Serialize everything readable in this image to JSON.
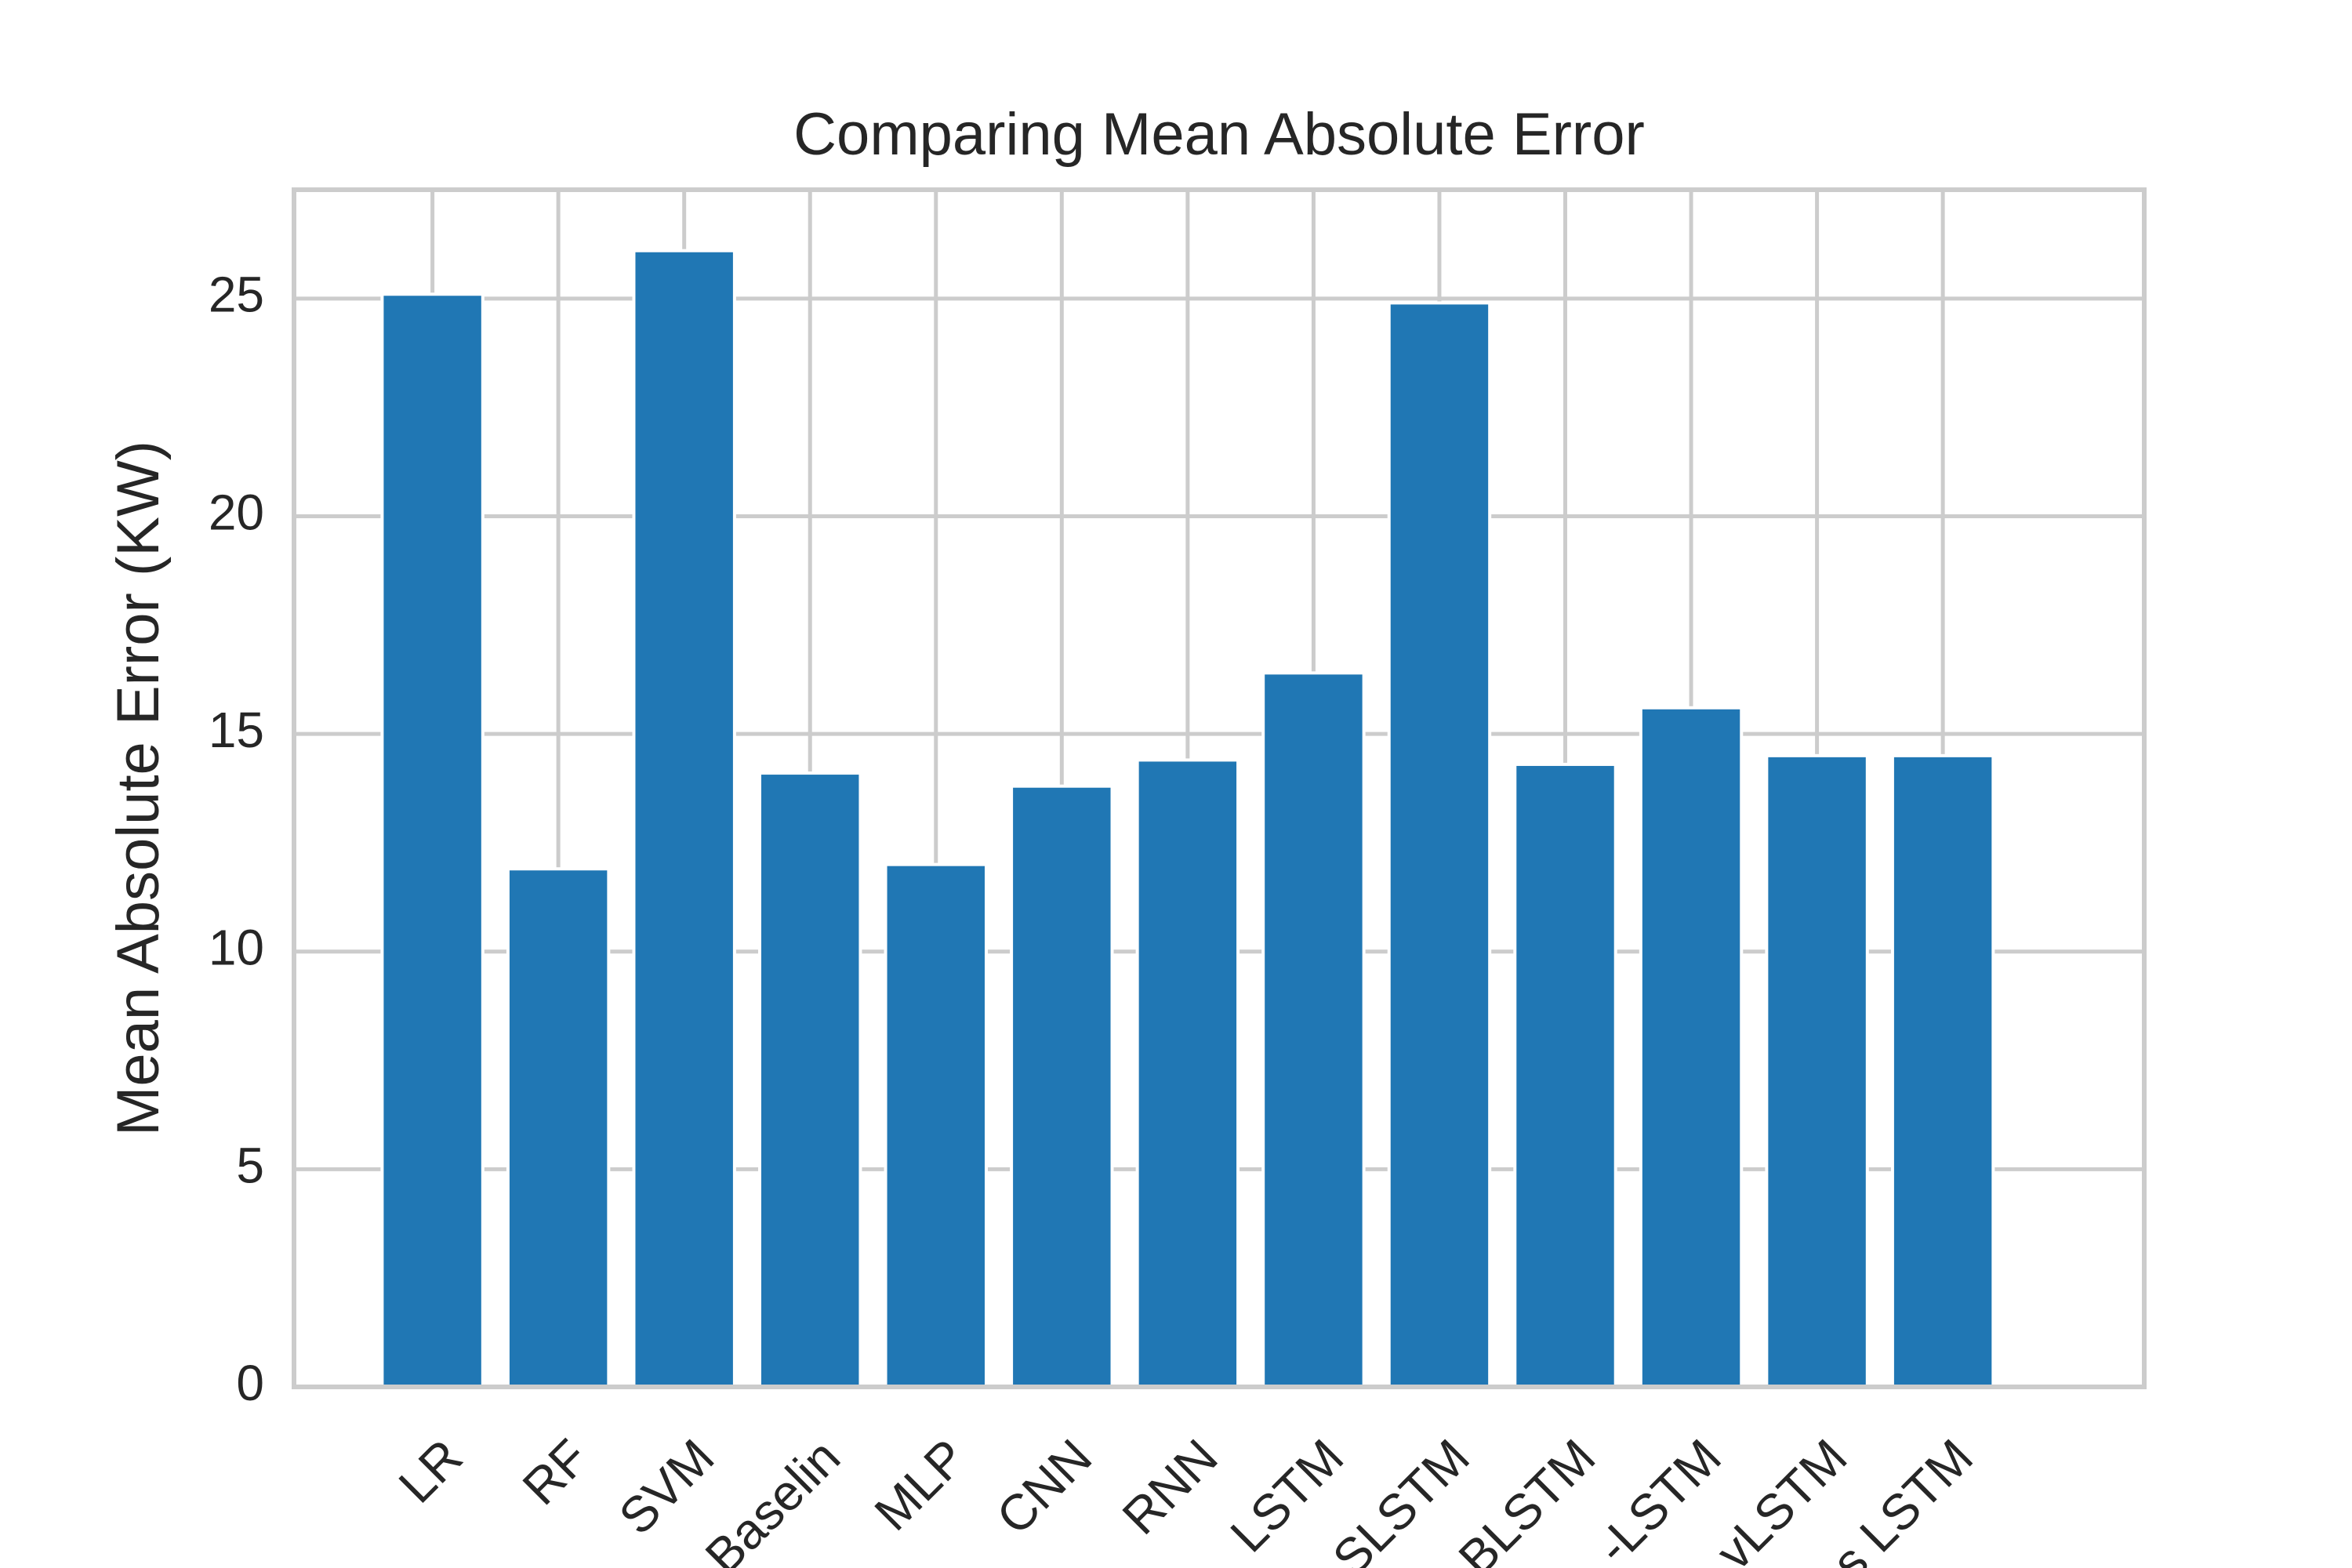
{
  "chart_data": {
    "type": "bar",
    "title": "Comparing Mean Absolute Error",
    "xlabel": "",
    "ylabel": "Mean Absolute Error (KW)",
    "categories": [
      "LR",
      "RF",
      "SVM",
      "Baselin",
      "MLP",
      "CNN",
      "RNN",
      "LSTM",
      "SLSTM",
      "BLSTM",
      "-LSTM",
      "vLSTM",
      "s LSTM"
    ],
    "values": [
      25.1,
      11.9,
      26.1,
      14.1,
      12.0,
      13.8,
      14.4,
      16.4,
      24.9,
      14.3,
      15.6,
      14.5,
      14.5
    ],
    "yticks": [
      0,
      5,
      10,
      15,
      20,
      25
    ],
    "ylim": [
      0,
      27.5
    ],
    "grid": true,
    "colors": {
      "bar": "#2077b4",
      "grid": "#cccccc",
      "spine": "#cccccc",
      "text": "#262626",
      "background": "#ffffff"
    }
  }
}
